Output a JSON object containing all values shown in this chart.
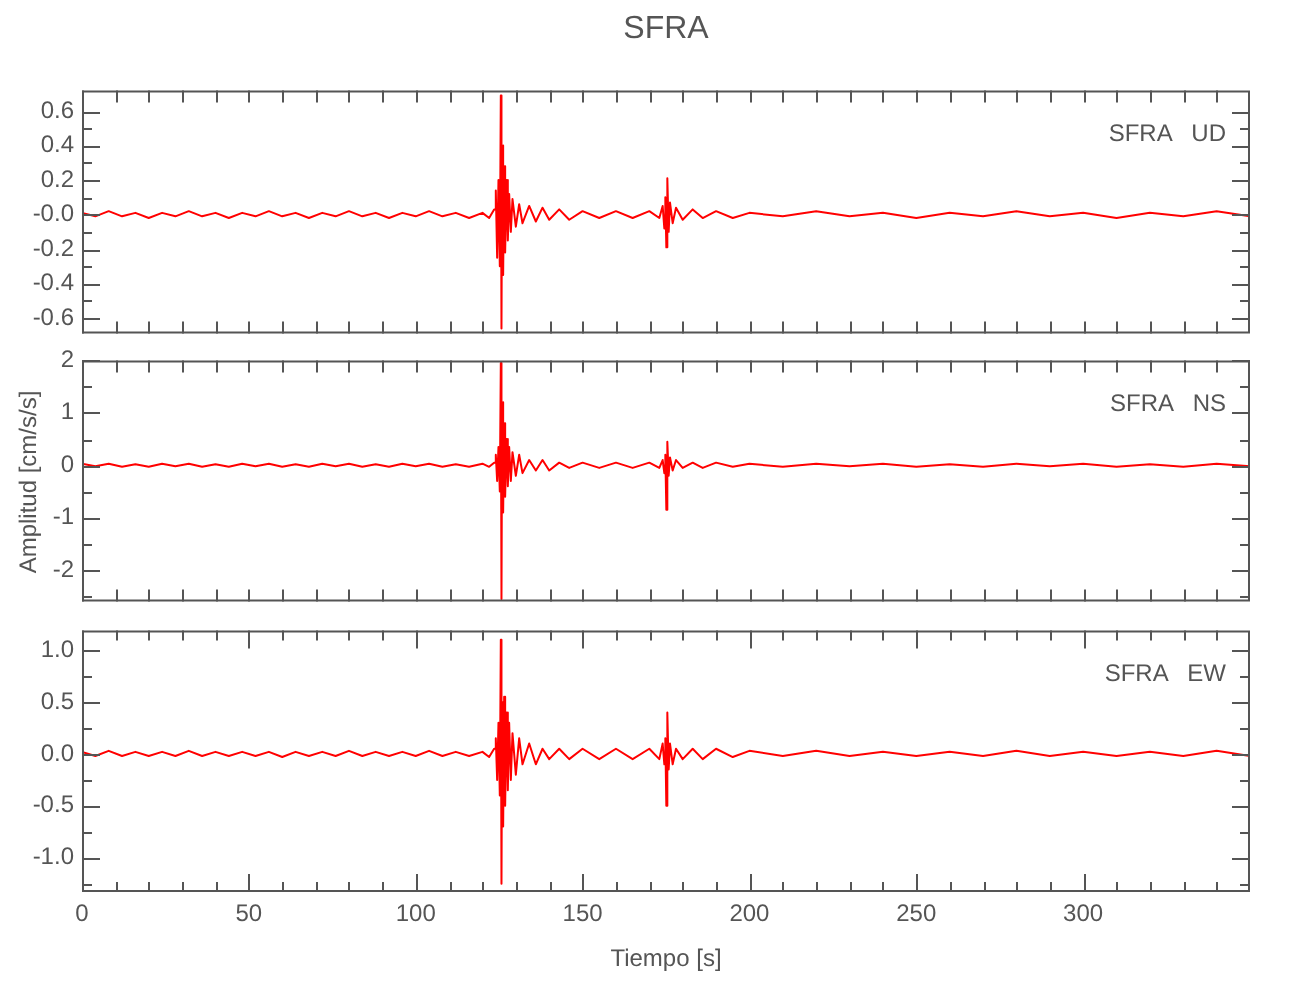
{
  "chart_data": [
    {
      "type": "line",
      "title": "SFRA",
      "annotations": [
        "SFRA   UD"
      ],
      "color": "#ff0000",
      "marker": "none",
      "tick_labels": "y",
      "x": [
        0,
        4,
        8,
        12,
        16,
        20,
        24,
        28,
        32,
        36,
        40,
        44,
        48,
        52,
        56,
        60,
        64,
        68,
        72,
        76,
        80,
        84,
        88,
        92,
        96,
        100,
        104,
        108,
        112,
        116,
        120,
        122,
        123.5,
        124,
        124.4,
        124.8,
        125.2,
        125.5,
        125.7,
        125.9,
        126.2,
        126.5,
        126.8,
        127.2,
        127.6,
        128,
        128.5,
        129,
        130,
        131,
        132,
        134,
        136,
        138,
        140,
        143,
        146,
        150,
        155,
        160,
        165,
        170,
        173,
        174,
        174.5,
        174.8,
        175.1,
        175.4,
        175.8,
        176.2,
        177,
        178,
        180,
        183,
        186,
        190,
        195,
        200,
        210,
        220,
        230,
        240,
        250,
        260,
        270,
        280,
        290,
        300,
        310,
        320,
        330,
        340,
        350
      ],
      "values": [
        0.01,
        -0.01,
        0.02,
        -0.01,
        0.01,
        -0.02,
        0.01,
        -0.01,
        0.02,
        -0.01,
        0.01,
        -0.02,
        0.01,
        -0.01,
        0.02,
        -0.01,
        0.01,
        -0.02,
        0.01,
        -0.01,
        0.02,
        -0.01,
        0.01,
        -0.02,
        0.01,
        -0.01,
        0.02,
        -0.01,
        0.01,
        -0.02,
        0.01,
        -0.02,
        0.03,
        0.14,
        -0.25,
        0.2,
        -0.3,
        0.69,
        -0.66,
        0.4,
        -0.35,
        0.28,
        -0.22,
        0.2,
        -0.15,
        0.12,
        -0.1,
        0.09,
        -0.07,
        0.06,
        -0.05,
        0.05,
        -0.04,
        0.04,
        -0.03,
        0.03,
        -0.03,
        0.02,
        -0.02,
        0.02,
        -0.02,
        0.02,
        -0.02,
        0.05,
        -0.08,
        0.1,
        -0.19,
        0.21,
        -0.1,
        0.07,
        -0.05,
        0.04,
        -0.03,
        0.03,
        -0.02,
        0.02,
        -0.02,
        0.01,
        -0.01,
        0.02,
        -0.01,
        0.01,
        -0.02,
        0.01,
        -0.01,
        0.02,
        -0.01,
        0.01,
        -0.02,
        0.01,
        -0.01,
        0.02,
        -0.01
      ],
      "xlim": [
        0,
        350
      ],
      "xticks": [
        {
          "value": 0,
          "label": null
        },
        {
          "value": 10,
          "label": null
        },
        {
          "value": 20,
          "label": null
        },
        {
          "value": 30,
          "label": null
        },
        {
          "value": 40,
          "label": null
        },
        {
          "value": 50,
          "label": null
        },
        {
          "value": 60,
          "label": null
        },
        {
          "value": 70,
          "label": null
        },
        {
          "value": 80,
          "label": null
        },
        {
          "value": 90,
          "label": null
        },
        {
          "value": 100,
          "label": null
        },
        {
          "value": 110,
          "label": null
        },
        {
          "value": 120,
          "label": null
        },
        {
          "value": 130,
          "label": null
        },
        {
          "value": 140,
          "label": null
        },
        {
          "value": 150,
          "label": null
        },
        {
          "value": 160,
          "label": null
        },
        {
          "value": 170,
          "label": null
        },
        {
          "value": 180,
          "label": null
        },
        {
          "value": 190,
          "label": null
        },
        {
          "value": 200,
          "label": null
        },
        {
          "value": 210,
          "label": null
        },
        {
          "value": 220,
          "label": null
        },
        {
          "value": 230,
          "label": null
        },
        {
          "value": 240,
          "label": null
        },
        {
          "value": 250,
          "label": null
        },
        {
          "value": 260,
          "label": null
        },
        {
          "value": 270,
          "label": null
        },
        {
          "value": 280,
          "label": null
        },
        {
          "value": 290,
          "label": null
        },
        {
          "value": 300,
          "label": null
        },
        {
          "value": 310,
          "label": null
        },
        {
          "value": 320,
          "label": null
        },
        {
          "value": 330,
          "label": null
        },
        {
          "value": 340,
          "label": null
        }
      ],
      "ylim": [
        -0.69,
        0.72
      ],
      "yticks": [
        {
          "value": -0.6,
          "label": "-0.6"
        },
        {
          "value": -0.5,
          "label": null
        },
        {
          "value": -0.4,
          "label": "-0.4"
        },
        {
          "value": -0.3,
          "label": null
        },
        {
          "value": -0.2,
          "label": "-0.2"
        },
        {
          "value": -0.1,
          "label": null
        },
        {
          "value": 0,
          "label": "-0.0"
        },
        {
          "value": 0.1,
          "label": null
        },
        {
          "value": 0.2,
          "label": "0.2"
        },
        {
          "value": 0.3,
          "label": null
        },
        {
          "value": 0.4,
          "label": "0.4"
        },
        {
          "value": 0.5,
          "label": null
        },
        {
          "value": 0.6,
          "label": "0.6"
        }
      ]
    },
    {
      "type": "line",
      "ylabel": "Amplitud [cm/s/s]",
      "annotations": [
        "SFRA   NS"
      ],
      "color": "#ff0000",
      "marker": "none",
      "tick_labels": "y",
      "x": [
        0,
        4,
        8,
        12,
        16,
        20,
        24,
        28,
        32,
        36,
        40,
        44,
        48,
        52,
        56,
        60,
        64,
        68,
        72,
        76,
        80,
        84,
        88,
        92,
        96,
        100,
        104,
        108,
        112,
        116,
        120,
        122,
        123.5,
        124,
        124.4,
        124.8,
        125.2,
        125.5,
        125.7,
        125.9,
        126.2,
        126.5,
        126.8,
        127.2,
        127.6,
        128,
        128.5,
        129,
        130,
        131,
        132,
        134,
        136,
        138,
        140,
        143,
        146,
        150,
        155,
        160,
        165,
        170,
        173,
        174,
        174.5,
        174.8,
        175.1,
        175.4,
        175.8,
        176.2,
        177,
        178,
        180,
        183,
        186,
        190,
        195,
        200,
        210,
        220,
        230,
        240,
        250,
        260,
        270,
        280,
        290,
        300,
        310,
        320,
        330,
        340,
        350
      ],
      "values": [
        0.03,
        -0.02,
        0.03,
        -0.03,
        0.02,
        -0.03,
        0.03,
        -0.02,
        0.03,
        -0.03,
        0.02,
        -0.03,
        0.03,
        -0.02,
        0.03,
        -0.03,
        0.02,
        -0.03,
        0.03,
        -0.02,
        0.03,
        -0.03,
        0.02,
        -0.03,
        0.03,
        -0.02,
        0.03,
        -0.03,
        0.02,
        -0.03,
        0.03,
        -0.03,
        0.05,
        0.2,
        -0.3,
        0.35,
        -0.5,
        1.95,
        -2.55,
        1.2,
        -0.9,
        0.8,
        -0.6,
        0.5,
        -0.4,
        0.35,
        -0.3,
        0.25,
        -0.2,
        0.2,
        -0.15,
        0.1,
        -0.1,
        0.1,
        -0.1,
        0.05,
        -0.05,
        0.05,
        -0.05,
        0.05,
        -0.05,
        0.05,
        -0.05,
        0.1,
        -0.15,
        0.2,
        -0.85,
        0.45,
        -0.2,
        0.15,
        -0.1,
        0.1,
        -0.05,
        0.05,
        -0.05,
        0.05,
        -0.03,
        0.03,
        -0.03,
        0.03,
        -0.02,
        0.03,
        -0.03,
        0.02,
        -0.03,
        0.03,
        -0.02,
        0.03,
        -0.03,
        0.02,
        -0.03,
        0.03,
        -0.02
      ],
      "xlim": [
        0,
        350
      ],
      "xticks": [
        {
          "value": 0,
          "label": null
        },
        {
          "value": 10,
          "label": null
        },
        {
          "value": 20,
          "label": null
        },
        {
          "value": 30,
          "label": null
        },
        {
          "value": 40,
          "label": null
        },
        {
          "value": 50,
          "label": null
        },
        {
          "value": 60,
          "label": null
        },
        {
          "value": 70,
          "label": null
        },
        {
          "value": 80,
          "label": null
        },
        {
          "value": 90,
          "label": null
        },
        {
          "value": 100,
          "label": null
        },
        {
          "value": 110,
          "label": null
        },
        {
          "value": 120,
          "label": null
        },
        {
          "value": 130,
          "label": null
        },
        {
          "value": 140,
          "label": null
        },
        {
          "value": 150,
          "label": null
        },
        {
          "value": 160,
          "label": null
        },
        {
          "value": 170,
          "label": null
        },
        {
          "value": 180,
          "label": null
        },
        {
          "value": 190,
          "label": null
        },
        {
          "value": 200,
          "label": null
        },
        {
          "value": 210,
          "label": null
        },
        {
          "value": 220,
          "label": null
        },
        {
          "value": 230,
          "label": null
        },
        {
          "value": 240,
          "label": null
        },
        {
          "value": 250,
          "label": null
        },
        {
          "value": 260,
          "label": null
        },
        {
          "value": 270,
          "label": null
        },
        {
          "value": 280,
          "label": null
        },
        {
          "value": 290,
          "label": null
        },
        {
          "value": 300,
          "label": null
        },
        {
          "value": 310,
          "label": null
        },
        {
          "value": 320,
          "label": null
        },
        {
          "value": 330,
          "label": null
        },
        {
          "value": 340,
          "label": null
        }
      ],
      "ylim": [
        -2.6,
        2.0
      ],
      "yticks": [
        {
          "value": -2.5,
          "label": null
        },
        {
          "value": -2,
          "label": "-2"
        },
        {
          "value": -1.5,
          "label": null
        },
        {
          "value": -1,
          "label": "-1"
        },
        {
          "value": -0.5,
          "label": null
        },
        {
          "value": 0,
          "label": "0"
        },
        {
          "value": 0.5,
          "label": null
        },
        {
          "value": 1,
          "label": "1"
        },
        {
          "value": 1.5,
          "label": null
        },
        {
          "value": 2,
          "label": "2"
        }
      ]
    },
    {
      "type": "line",
      "xlabel": "Tiempo [s]",
      "annotations": [
        "SFRA   EW"
      ],
      "color": "#ff0000",
      "marker": "none",
      "x": [
        0,
        4,
        8,
        12,
        16,
        20,
        24,
        28,
        32,
        36,
        40,
        44,
        48,
        52,
        56,
        60,
        64,
        68,
        72,
        76,
        80,
        84,
        88,
        92,
        96,
        100,
        104,
        108,
        112,
        116,
        120,
        122,
        123.5,
        124,
        124.4,
        124.8,
        125.2,
        125.5,
        125.7,
        125.9,
        126.2,
        126.5,
        126.8,
        127.2,
        127.6,
        128,
        128.5,
        129,
        130,
        131,
        132,
        134,
        136,
        138,
        140,
        143,
        146,
        150,
        155,
        160,
        165,
        170,
        173,
        174,
        174.5,
        174.8,
        175.1,
        175.4,
        175.8,
        176.2,
        177,
        178,
        180,
        183,
        186,
        190,
        195,
        200,
        210,
        220,
        230,
        240,
        250,
        260,
        270,
        280,
        290,
        300,
        310,
        320,
        330,
        340,
        350
      ],
      "values": [
        0.02,
        -0.02,
        0.03,
        -0.02,
        0.02,
        -0.02,
        0.02,
        -0.02,
        0.03,
        -0.02,
        0.02,
        -0.02,
        0.02,
        -0.02,
        0.02,
        -0.03,
        0.02,
        -0.02,
        0.02,
        -0.02,
        0.03,
        -0.02,
        0.02,
        -0.02,
        0.02,
        -0.02,
        0.03,
        -0.02,
        0.02,
        -0.02,
        0.02,
        -0.03,
        0.05,
        0.15,
        -0.25,
        0.3,
        -0.4,
        1.1,
        -1.25,
        0.5,
        -0.7,
        0.55,
        -0.5,
        0.4,
        -0.35,
        0.3,
        -0.25,
        0.2,
        -0.2,
        0.15,
        -0.1,
        0.1,
        -0.1,
        0.05,
        -0.05,
        0.05,
        -0.05,
        0.05,
        -0.05,
        0.05,
        -0.05,
        0.05,
        -0.05,
        0.1,
        -0.1,
        0.15,
        -0.5,
        0.4,
        -0.15,
        0.1,
        -0.1,
        0.05,
        -0.05,
        0.05,
        -0.05,
        0.05,
        -0.03,
        0.03,
        -0.02,
        0.03,
        -0.02,
        0.02,
        -0.02,
        0.02,
        -0.02,
        0.03,
        -0.02,
        0.02,
        -0.02,
        0.02,
        -0.02,
        0.03,
        -0.02
      ],
      "xlim": [
        0,
        350
      ],
      "xticks": [
        {
          "value": 0,
          "label": "0"
        },
        {
          "value": 10,
          "label": null
        },
        {
          "value": 20,
          "label": null
        },
        {
          "value": 30,
          "label": null
        },
        {
          "value": 40,
          "label": null
        },
        {
          "value": 50,
          "label": "50"
        },
        {
          "value": 60,
          "label": null
        },
        {
          "value": 70,
          "label": null
        },
        {
          "value": 80,
          "label": null
        },
        {
          "value": 90,
          "label": null
        },
        {
          "value": 100,
          "label": "100"
        },
        {
          "value": 110,
          "label": null
        },
        {
          "value": 120,
          "label": null
        },
        {
          "value": 130,
          "label": null
        },
        {
          "value": 140,
          "label": null
        },
        {
          "value": 150,
          "label": "150"
        },
        {
          "value": 160,
          "label": null
        },
        {
          "value": 170,
          "label": null
        },
        {
          "value": 180,
          "label": null
        },
        {
          "value": 190,
          "label": null
        },
        {
          "value": 200,
          "label": "200"
        },
        {
          "value": 210,
          "label": null
        },
        {
          "value": 220,
          "label": null
        },
        {
          "value": 230,
          "label": null
        },
        {
          "value": 240,
          "label": null
        },
        {
          "value": 250,
          "label": "250"
        },
        {
          "value": 260,
          "label": null
        },
        {
          "value": 270,
          "label": null
        },
        {
          "value": 280,
          "label": null
        },
        {
          "value": 290,
          "label": null
        },
        {
          "value": 300,
          "label": "300"
        },
        {
          "value": 310,
          "label": null
        },
        {
          "value": 320,
          "label": null
        },
        {
          "value": 330,
          "label": null
        },
        {
          "value": 340,
          "label": null
        }
      ],
      "ylim": [
        -1.33,
        1.19
      ],
      "yticks": [
        {
          "value": -1.25,
          "label": null
        },
        {
          "value": -1,
          "label": "-1.0"
        },
        {
          "value": -0.75,
          "label": null
        },
        {
          "value": -0.5,
          "label": "-0.5"
        },
        {
          "value": -0.25,
          "label": null
        },
        {
          "value": 0,
          "label": "0.0"
        },
        {
          "value": 0.25,
          "label": null
        },
        {
          "value": 0.5,
          "label": "0.5"
        },
        {
          "value": 0.75,
          "label": null
        },
        {
          "value": 1,
          "label": "1.0"
        }
      ]
    }
  ]
}
